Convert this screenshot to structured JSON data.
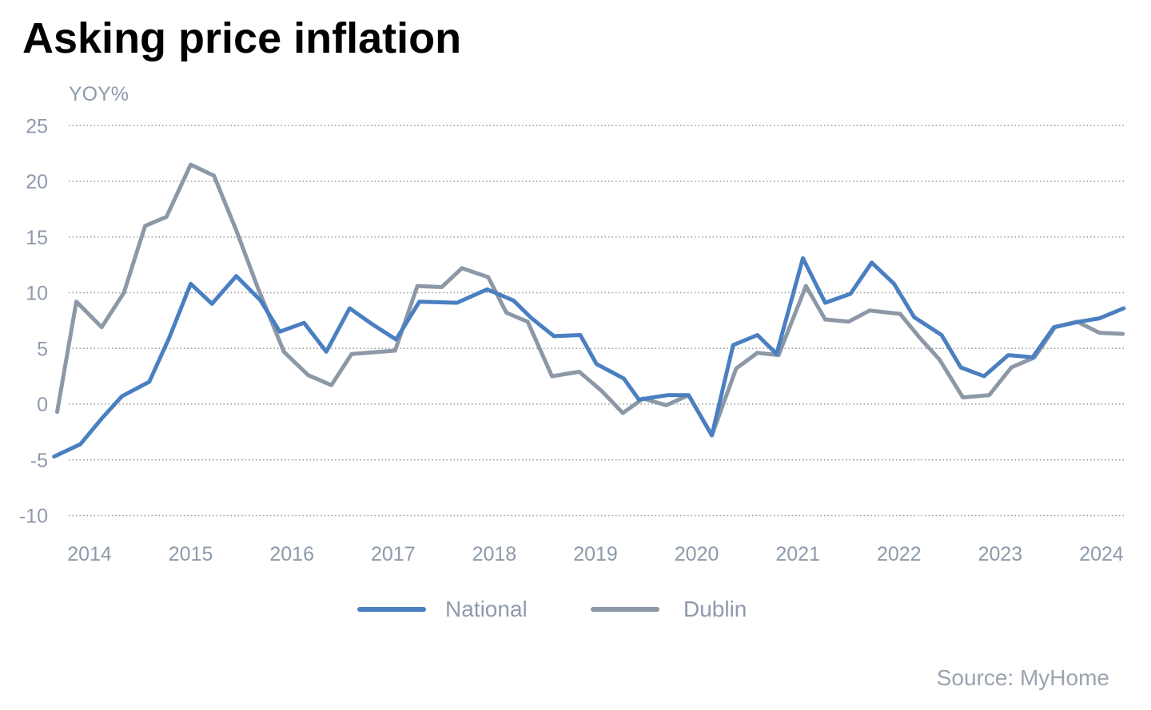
{
  "chart_data": {
    "type": "line",
    "title": "Asking price inflation",
    "ylabel": "YOY%",
    "source": "Source: MyHome",
    "ylim": [
      -10,
      25
    ],
    "xlim": [
      2013.6,
      2024.25
    ],
    "yticks": [
      25,
      20,
      15,
      10,
      5,
      0,
      -5,
      -10
    ],
    "xticks": [
      2014,
      2015,
      2016,
      2017,
      2018,
      2019,
      2020,
      2021,
      2022,
      2023,
      2024
    ],
    "grid": "horizontal dotted",
    "legend_position": "bottom",
    "series": [
      {
        "name": "National",
        "color": "#4a7fc1",
        "points": [
          [
            2013.65,
            -4.7
          ],
          [
            2013.91,
            -3.6
          ],
          [
            2014.12,
            -1.3
          ],
          [
            2014.32,
            0.7
          ],
          [
            2014.59,
            2.0
          ],
          [
            2014.79,
            6.0
          ],
          [
            2015.0,
            10.8
          ],
          [
            2015.21,
            9.0
          ],
          [
            2015.45,
            11.5
          ],
          [
            2015.69,
            9.3
          ],
          [
            2015.88,
            6.5
          ],
          [
            2016.12,
            7.3
          ],
          [
            2016.34,
            4.7
          ],
          [
            2016.57,
            8.6
          ],
          [
            2016.79,
            7.2
          ],
          [
            2017.03,
            5.8
          ],
          [
            2017.26,
            9.2
          ],
          [
            2017.63,
            9.1
          ],
          [
            2017.93,
            10.3
          ],
          [
            2018.19,
            9.3
          ],
          [
            2018.37,
            7.7
          ],
          [
            2018.59,
            6.1
          ],
          [
            2018.85,
            6.2
          ],
          [
            2019.01,
            3.6
          ],
          [
            2019.28,
            2.3
          ],
          [
            2019.43,
            0.4
          ],
          [
            2019.71,
            0.8
          ],
          [
            2019.92,
            0.8
          ],
          [
            2020.15,
            -2.8
          ],
          [
            2020.36,
            5.3
          ],
          [
            2020.6,
            6.2
          ],
          [
            2020.79,
            4.5
          ],
          [
            2021.05,
            13.1
          ],
          [
            2021.27,
            9.1
          ],
          [
            2021.52,
            9.9
          ],
          [
            2021.73,
            12.7
          ],
          [
            2021.95,
            10.8
          ],
          [
            2022.15,
            7.8
          ],
          [
            2022.42,
            6.2
          ],
          [
            2022.61,
            3.3
          ],
          [
            2022.84,
            2.5
          ],
          [
            2023.08,
            4.4
          ],
          [
            2023.32,
            4.2
          ],
          [
            2023.53,
            6.9
          ],
          [
            2023.78,
            7.4
          ],
          [
            2023.98,
            7.7
          ],
          [
            2024.22,
            8.6
          ]
        ]
      },
      {
        "name": "Dublin",
        "color": "#8c98a6",
        "points": [
          [
            2013.68,
            -0.7
          ],
          [
            2013.87,
            9.2
          ],
          [
            2014.12,
            6.9
          ],
          [
            2014.34,
            10.0
          ],
          [
            2014.55,
            16.0
          ],
          [
            2014.76,
            16.8
          ],
          [
            2015.0,
            21.5
          ],
          [
            2015.23,
            20.5
          ],
          [
            2015.45,
            15.6
          ],
          [
            2015.66,
            10.5
          ],
          [
            2015.92,
            4.7
          ],
          [
            2016.16,
            2.6
          ],
          [
            2016.39,
            1.7
          ],
          [
            2016.59,
            4.5
          ],
          [
            2017.02,
            4.8
          ],
          [
            2017.24,
            10.6
          ],
          [
            2017.48,
            10.5
          ],
          [
            2017.68,
            12.2
          ],
          [
            2017.94,
            11.4
          ],
          [
            2018.12,
            8.2
          ],
          [
            2018.33,
            7.4
          ],
          [
            2018.57,
            2.5
          ],
          [
            2018.84,
            2.9
          ],
          [
            2019.06,
            1.2
          ],
          [
            2019.27,
            -0.8
          ],
          [
            2019.47,
            0.5
          ],
          [
            2019.7,
            -0.1
          ],
          [
            2019.92,
            0.8
          ],
          [
            2020.15,
            -2.8
          ],
          [
            2020.39,
            3.2
          ],
          [
            2020.6,
            4.6
          ],
          [
            2020.81,
            4.4
          ],
          [
            2021.08,
            10.6
          ],
          [
            2021.27,
            7.6
          ],
          [
            2021.5,
            7.4
          ],
          [
            2021.71,
            8.4
          ],
          [
            2022.01,
            8.1
          ],
          [
            2022.2,
            6.0
          ],
          [
            2022.4,
            4.0
          ],
          [
            2022.63,
            0.6
          ],
          [
            2022.89,
            0.8
          ],
          [
            2023.11,
            3.3
          ],
          [
            2023.34,
            4.2
          ],
          [
            2023.54,
            6.9
          ],
          [
            2023.76,
            7.4
          ],
          [
            2023.98,
            6.4
          ],
          [
            2024.21,
            6.3
          ]
        ]
      }
    ]
  }
}
